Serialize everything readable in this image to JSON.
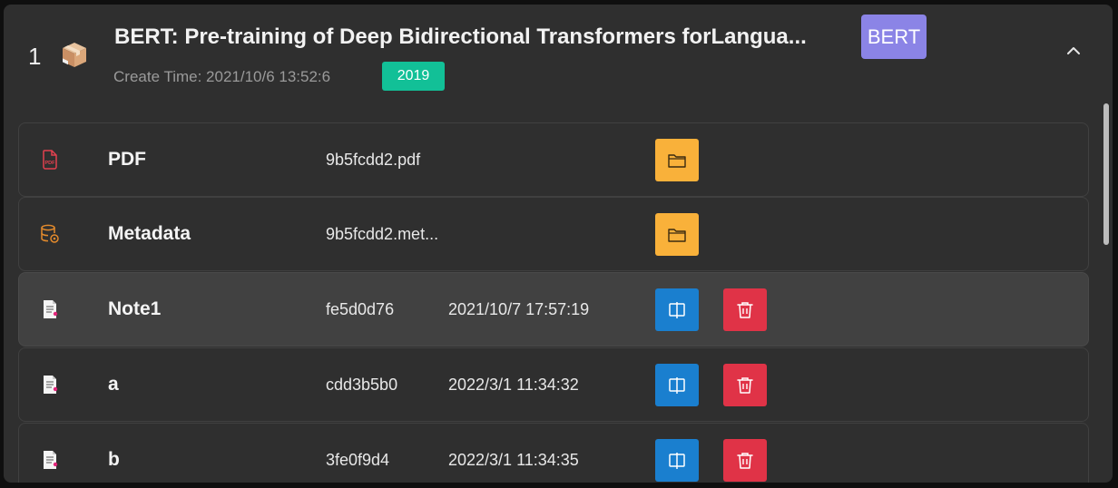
{
  "entry": {
    "index": "1",
    "title": "BERT: Pre-training of Deep Bidirectional Transformers forLangua...",
    "tag": "BERT",
    "create_time": "Create Time: 2021/10/6 13:52:6",
    "year": "2019",
    "collapse_icon": "chevron-up-icon"
  },
  "rows": [
    {
      "icon": "pdf-file-icon",
      "name": "PDF",
      "file": "9b5fcdd2.pdf",
      "time": "",
      "actions": [
        "open-folder"
      ]
    },
    {
      "icon": "database-icon",
      "name": "Metadata",
      "file": "9b5fcdd2.met...",
      "time": "",
      "actions": [
        "open-folder"
      ]
    },
    {
      "icon": "note-file-icon",
      "name": "Note1",
      "file": "fe5d0d76",
      "time": "2021/10/7 17:57:19",
      "actions": [
        "open-note",
        "delete"
      ]
    },
    {
      "icon": "note-file-icon",
      "name": "a",
      "file": "cdd3b5b0",
      "time": "2022/3/1 11:34:32",
      "actions": [
        "open-note",
        "delete"
      ]
    },
    {
      "icon": "note-file-icon",
      "name": "b",
      "file": "3fe0f9d4",
      "time": "2022/3/1 11:34:35",
      "actions": [
        "open-note",
        "delete"
      ]
    }
  ],
  "colors": {
    "panel_bg": "#2f2f2f",
    "highlight_row_bg": "#414141",
    "tag_purple": "#8b84e6",
    "year_green": "#12c097",
    "folder_yellow": "#f9b13a",
    "open_blue": "#1a7fcf",
    "delete_red": "#e03347"
  }
}
